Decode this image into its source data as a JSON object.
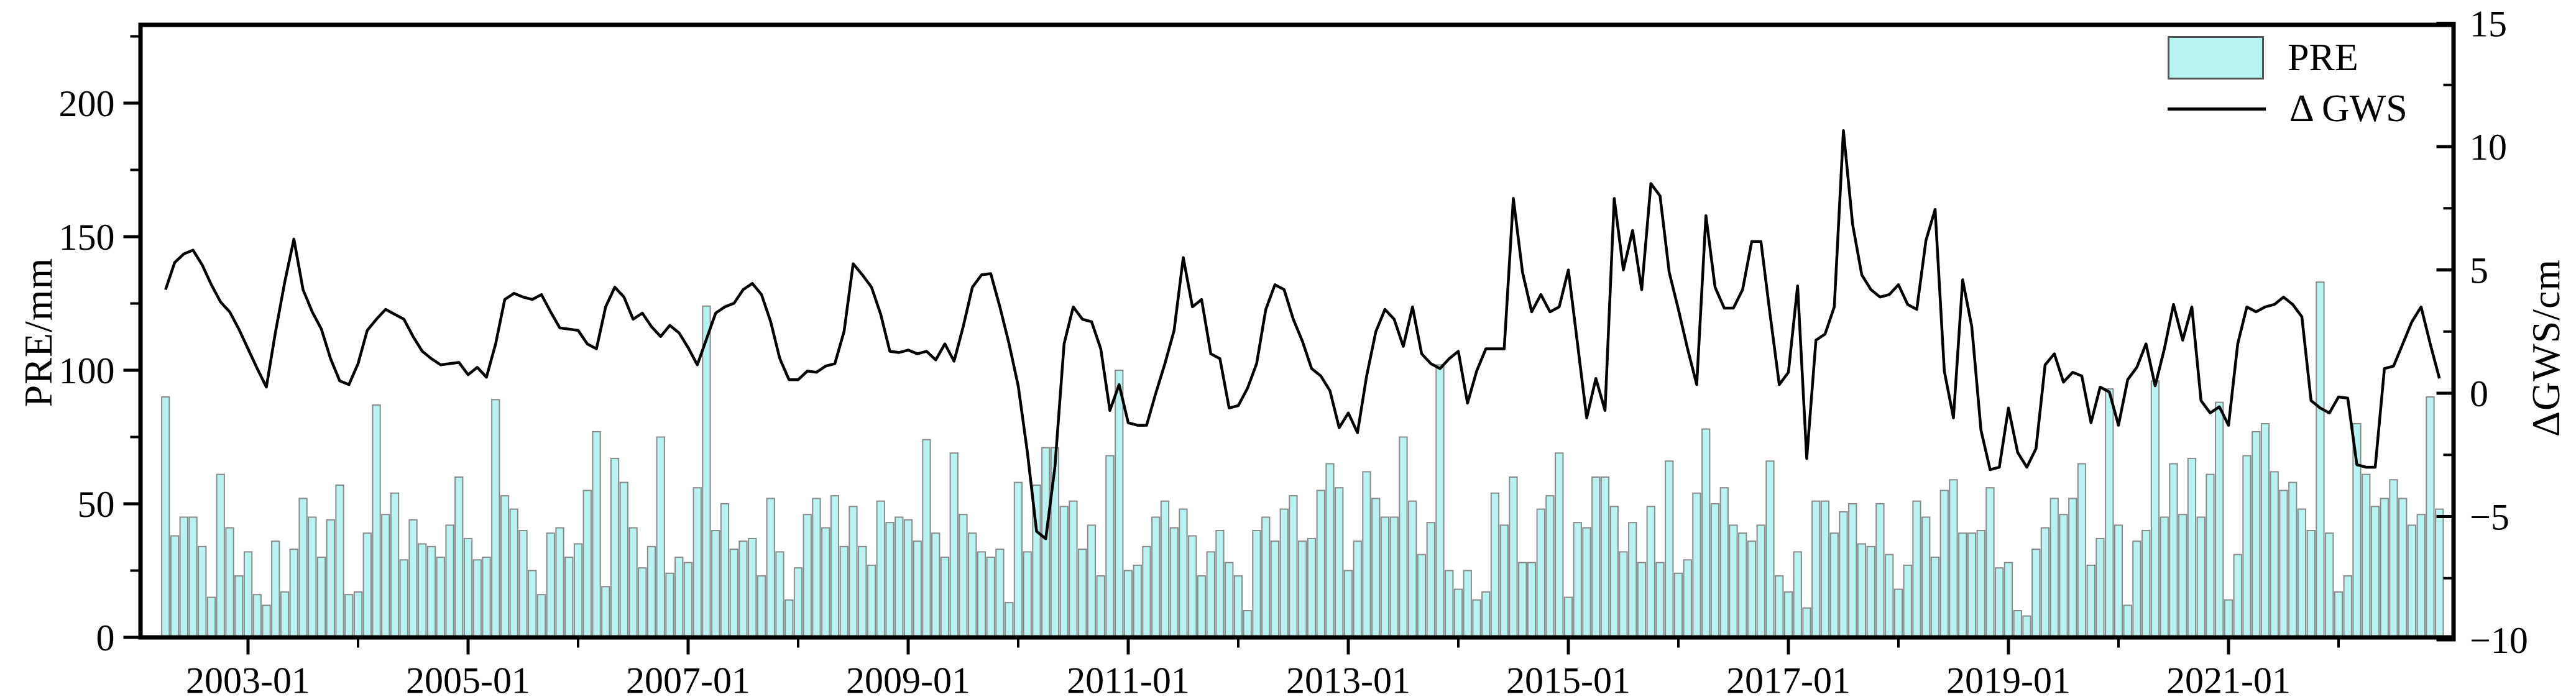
{
  "chart_data": {
    "type": "bar+line",
    "title": "",
    "x_start": "2002-04",
    "x_end": "2022-12",
    "x_step": "1 month",
    "n_points": 249,
    "left_axis": {
      "label": "PRE/mm",
      "range": [
        0,
        232
      ],
      "major_ticks": [
        0,
        50,
        100,
        150,
        200
      ],
      "minor_ticks": [
        25,
        75,
        125,
        175,
        225
      ]
    },
    "right_axis": {
      "label": "ΔGWS/cm",
      "range": [
        -10,
        15
      ],
      "major_ticks": [
        15,
        10,
        5,
        0,
        -5,
        -10
      ],
      "major_tick_labels": [
        "15",
        "10",
        "5",
        "0",
        "−5",
        "−10"
      ],
      "minor_ticks": [
        12.5,
        7.5,
        2.5,
        -2.5,
        -7.5
      ]
    },
    "x_axis": {
      "major_ticks": [
        "2003-01",
        "2005-01",
        "2007-01",
        "2009-01",
        "2011-01",
        "2013-01",
        "2015-01",
        "2017-01",
        "2019-01",
        "2021-01"
      ],
      "minor_ticks": [
        "2004-01",
        "2006-01",
        "2008-01",
        "2010-01",
        "2012-01",
        "2014-01",
        "2016-01",
        "2018-01",
        "2020-01",
        "2022-01"
      ]
    },
    "legend": {
      "position": "top-right",
      "items": [
        {
          "label": "PRE",
          "swatch": "bar"
        },
        {
          "label": "Δ GWS",
          "swatch": "line"
        }
      ]
    },
    "grid": false,
    "colors": {
      "bar_fill": "#b7f3f1",
      "bar_stroke": "#8a8a8a",
      "line": "#000000",
      "axis": "#000000"
    },
    "series": [
      {
        "name": "PRE",
        "type": "bar",
        "axis": "left",
        "unit": "mm",
        "values": [
          90,
          38,
          45,
          45,
          34,
          15,
          61,
          41,
          23,
          32,
          16,
          12,
          36,
          17,
          33,
          52,
          45,
          30,
          44,
          57,
          16,
          17,
          39,
          87,
          46,
          54,
          29,
          44,
          35,
          34,
          30,
          42,
          60,
          37,
          29,
          30,
          89,
          53,
          48,
          40,
          25,
          16,
          39,
          41,
          30,
          35,
          55,
          77,
          19,
          67,
          58,
          41,
          26,
          34,
          75,
          24,
          30,
          28,
          56,
          124,
          40,
          50,
          33,
          36,
          37,
          23,
          52,
          32,
          14,
          26,
          46,
          52,
          41,
          53,
          34,
          49,
          34,
          27,
          51,
          43,
          45,
          44,
          36,
          74,
          39,
          30,
          69,
          46,
          39,
          32,
          30,
          33,
          13,
          58,
          32,
          57,
          71,
          71,
          49,
          51,
          33,
          42,
          23,
          68,
          100,
          25,
          27,
          34,
          45,
          51,
          41,
          48,
          38,
          23,
          32,
          40,
          28,
          23,
          10,
          40,
          45,
          36,
          48,
          53,
          36,
          37,
          55,
          65,
          56,
          25,
          36,
          62,
          52,
          45,
          45,
          75,
          51,
          31,
          43,
          102,
          25,
          18,
          25,
          14,
          17,
          54,
          42,
          60,
          28,
          28,
          48,
          53,
          69,
          15,
          43,
          41,
          60,
          60,
          49,
          32,
          43,
          28,
          49,
          28,
          66,
          24,
          29,
          54,
          78,
          50,
          56,
          42,
          39,
          36,
          42,
          66,
          23,
          17,
          32,
          11,
          51,
          51,
          39,
          47,
          50,
          35,
          34,
          50,
          31,
          18,
          27,
          51,
          45,
          30,
          55,
          59,
          39,
          39,
          40,
          56,
          26,
          28,
          10,
          8,
          33,
          41,
          52,
          46,
          52,
          65,
          27,
          37,
          93,
          42,
          12,
          36,
          40,
          96,
          45,
          65,
          46,
          67,
          45,
          61,
          88,
          14,
          31,
          68,
          77,
          80,
          62,
          55,
          58,
          48,
          40,
          133,
          39,
          17,
          23,
          80,
          61,
          49,
          52,
          59,
          52,
          42,
          46,
          90,
          48
        ]
      },
      {
        "name": "Δ GWS",
        "type": "line",
        "axis": "right",
        "unit": "cm",
        "values": [
          4.2,
          5.3,
          5.65,
          5.8,
          5.2,
          4.4,
          3.7,
          3.3,
          2.6,
          1.8,
          1.0,
          0.25,
          2.5,
          4.5,
          6.25,
          4.2,
          3.3,
          2.6,
          1.4,
          0.5,
          0.35,
          1.2,
          2.55,
          3.0,
          3.4,
          3.2,
          3.0,
          2.3,
          1.7,
          1.4,
          1.15,
          1.2,
          1.25,
          0.75,
          1.05,
          0.65,
          2.0,
          3.8,
          4.05,
          3.9,
          3.8,
          4.0,
          3.3,
          2.65,
          2.6,
          2.55,
          2.0,
          1.8,
          3.5,
          4.3,
          3.9,
          3.0,
          3.25,
          2.7,
          2.3,
          2.75,
          2.45,
          1.85,
          1.15,
          2.2,
          3.25,
          3.5,
          3.65,
          4.2,
          4.45,
          4.0,
          2.9,
          1.4,
          0.55,
          0.55,
          0.9,
          0.85,
          1.1,
          1.2,
          2.5,
          5.25,
          4.8,
          4.3,
          3.2,
          1.7,
          1.65,
          1.75,
          1.6,
          1.7,
          1.35,
          2.0,
          1.3,
          2.7,
          4.3,
          4.8,
          4.85,
          3.5,
          2.0,
          0.3,
          -2.4,
          -5.6,
          -5.9,
          -3.0,
          2.0,
          3.5,
          3.0,
          2.9,
          1.8,
          -0.7,
          0.35,
          -1.2,
          -1.3,
          -1.3,
          0.0,
          1.2,
          2.55,
          5.5,
          3.5,
          3.8,
          1.6,
          1.4,
          -0.6,
          -0.5,
          0.2,
          1.2,
          3.4,
          4.4,
          4.2,
          3.0,
          2.1,
          1.0,
          0.7,
          0.1,
          -1.4,
          -0.8,
          -1.6,
          0.7,
          2.5,
          3.4,
          3.0,
          1.9,
          3.5,
          1.6,
          1.2,
          1.0,
          1.4,
          1.7,
          -0.4,
          0.9,
          1.8,
          1.8,
          1.8,
          7.9,
          4.9,
          3.3,
          4.0,
          3.3,
          3.5,
          5.0,
          2.0,
          -1.0,
          0.6,
          -0.7,
          7.9,
          5.0,
          6.6,
          4.2,
          8.5,
          8.0,
          4.9,
          3.4,
          1.8,
          0.35,
          7.2,
          4.3,
          3.45,
          3.45,
          4.2,
          6.15,
          6.15,
          3.2,
          0.35,
          0.85,
          4.35,
          -2.65,
          2.15,
          2.4,
          3.5,
          10.65,
          6.85,
          4.8,
          4.2,
          3.9,
          4.0,
          4.4,
          3.6,
          3.4,
          6.2,
          7.45,
          0.9,
          -1.0,
          4.6,
          2.7,
          -1.5,
          -3.1,
          -3.0,
          -0.6,
          -2.4,
          -3.0,
          -2.25,
          1.15,
          1.6,
          0.45,
          0.85,
          0.7,
          -1.2,
          0.25,
          0.05,
          -1.3,
          0.55,
          1.05,
          2.0,
          0.3,
          1.8,
          3.6,
          2.15,
          3.5,
          -0.3,
          -0.8,
          -0.55,
          -1.3,
          2.0,
          3.5,
          3.3,
          3.5,
          3.6,
          3.9,
          3.6,
          3.1,
          -0.3,
          -0.6,
          -0.8,
          -0.15,
          -0.2,
          -2.9,
          -3.0,
          -3.0,
          1.0,
          1.1,
          2.0,
          2.9,
          3.5,
          2.0,
          0.6
        ]
      }
    ]
  }
}
